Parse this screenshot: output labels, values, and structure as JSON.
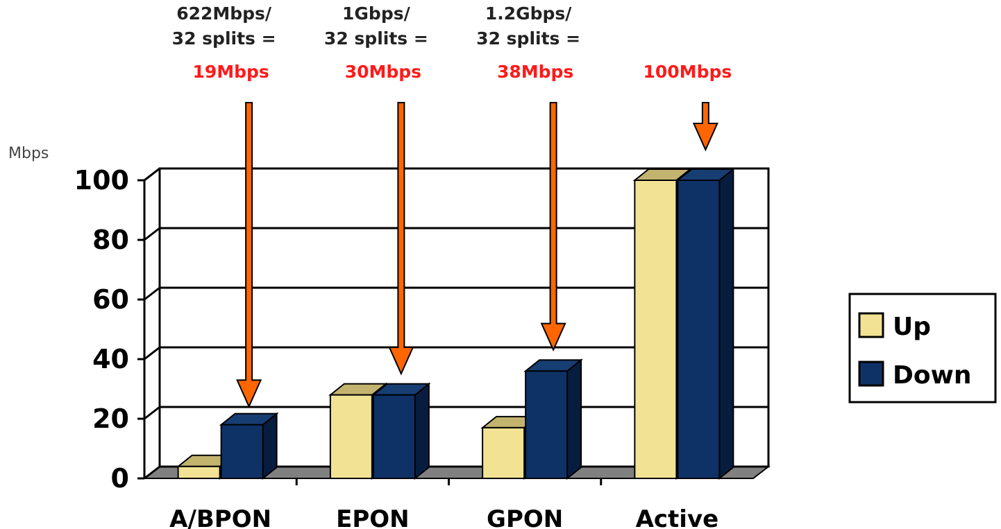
{
  "chart_data": {
    "type": "bar",
    "ylabel": "Mbps",
    "ylim": [
      0,
      100
    ],
    "yticks": [
      "0",
      "20",
      "40",
      "60",
      "80",
      "100"
    ],
    "categories": [
      "A/BPON",
      "EPON",
      "GPON",
      "Active"
    ],
    "series": [
      {
        "name": "Up",
        "color": "#f2e394",
        "top_color": "#c2b46f",
        "side_color": "#b3a25c",
        "values": [
          4,
          28,
          17,
          100
        ]
      },
      {
        "name": "Down",
        "color": "#0f3266",
        "top_color": "#173e72",
        "side_color": "#071d40",
        "values": [
          18,
          28,
          36,
          100
        ]
      }
    ],
    "grid": true,
    "legend": "right",
    "annotations": [
      {
        "category": "A/BPON",
        "lines": [
          "622Mbps/",
          "32 splits ="
        ],
        "highlight": "19Mbps",
        "arrow_to": 19
      },
      {
        "category": "EPON",
        "lines": [
          "1Gbps/",
          "32 splits ="
        ],
        "highlight": "30Mbps",
        "arrow_to": 30
      },
      {
        "category": "GPON",
        "lines": [
          "1.2Gbps/",
          "32 splits ="
        ],
        "highlight": "38Mbps",
        "arrow_to": 38
      },
      {
        "category": "Active",
        "lines": [],
        "highlight": "100Mbps",
        "arrow_to": 100
      }
    ],
    "colors": {
      "arrow": "#ff6600",
      "highlight_text": "#ff1a1a",
      "floor": "#808080"
    }
  }
}
